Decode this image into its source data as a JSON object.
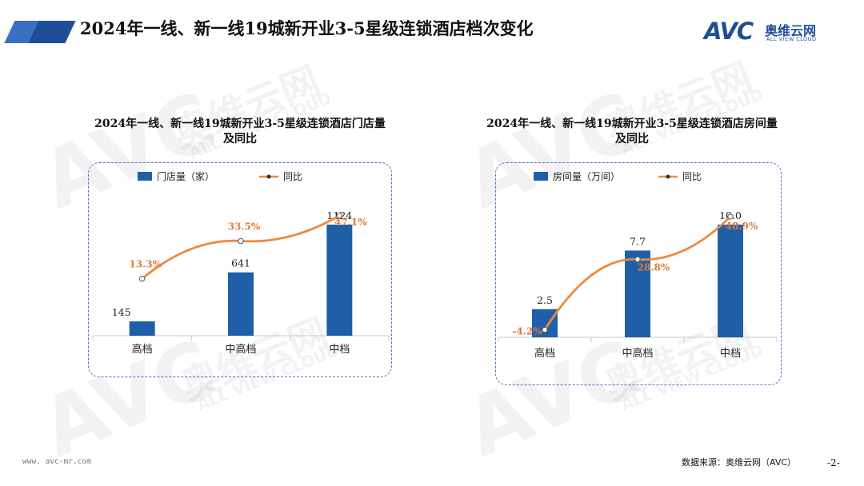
{
  "header": {
    "title": "2024年一线、新一线19城新开业3-5星级连锁酒店档次变化"
  },
  "logo": {
    "brand": "AVC",
    "name_cn": "奥维云网",
    "name_en": "ALL VIEW CLOUD"
  },
  "watermark": {
    "brand": "AVC",
    "cn": "奥维云网",
    "en": "ALL VIEW CLOUD"
  },
  "colors": {
    "bar": "#1f5fa8",
    "line": "#ed8a3e",
    "label_pct": "#e07b39",
    "box_border": "#4a74c4",
    "brand": "#1f4e99"
  },
  "chart_data": [
    {
      "type": "bar",
      "title": "2024年一线、新一线19城新开业3-5星级连锁酒店门店量及同比",
      "title_lines": [
        "2024年一线、新一线19城新开业3-5星级连锁酒店门店量",
        "及同比"
      ],
      "categories": [
        "高档",
        "中高档",
        "中档"
      ],
      "series": [
        {
          "name": "门店量（家）",
          "type": "bar",
          "values": [
            145,
            641,
            1124
          ],
          "labels": [
            "145",
            "641",
            "1124"
          ]
        },
        {
          "name": "同比",
          "type": "line",
          "values": [
            13.3,
            33.5,
            47.1
          ],
          "labels": [
            "13.3%",
            "33.5%",
            "47.1%"
          ],
          "unit": "%"
        }
      ],
      "ylim": [
        0,
        1124
      ],
      "y2lim": [
        -10,
        50
      ],
      "legend_position": "top"
    },
    {
      "type": "bar",
      "title": "2024年一线、新一线19城新开业3-5星级连锁酒店房间量及同比",
      "title_lines": [
        "2024年一线、新一线19城新开业3-5星级连锁酒店房间量",
        "及同比"
      ],
      "categories": [
        "高档",
        "中高档",
        "中档"
      ],
      "series": [
        {
          "name": "房间量（万间）",
          "type": "bar",
          "values": [
            2.5,
            7.7,
            10.0
          ],
          "labels": [
            "2.5",
            "7.7",
            "10.0"
          ]
        },
        {
          "name": "同比",
          "type": "line",
          "values": [
            -4.2,
            28.8,
            48.9
          ],
          "labels": [
            "-4.2%",
            "28.8%",
            "48.9%"
          ],
          "unit": "%"
        }
      ],
      "ylim": [
        0,
        10.0
      ],
      "y2lim": [
        -10,
        50
      ],
      "legend_position": "top"
    }
  ],
  "footer": {
    "url": "www. avc-mr.com",
    "source": "数据来源：奥维云网（AVC）",
    "page": "-2-"
  }
}
